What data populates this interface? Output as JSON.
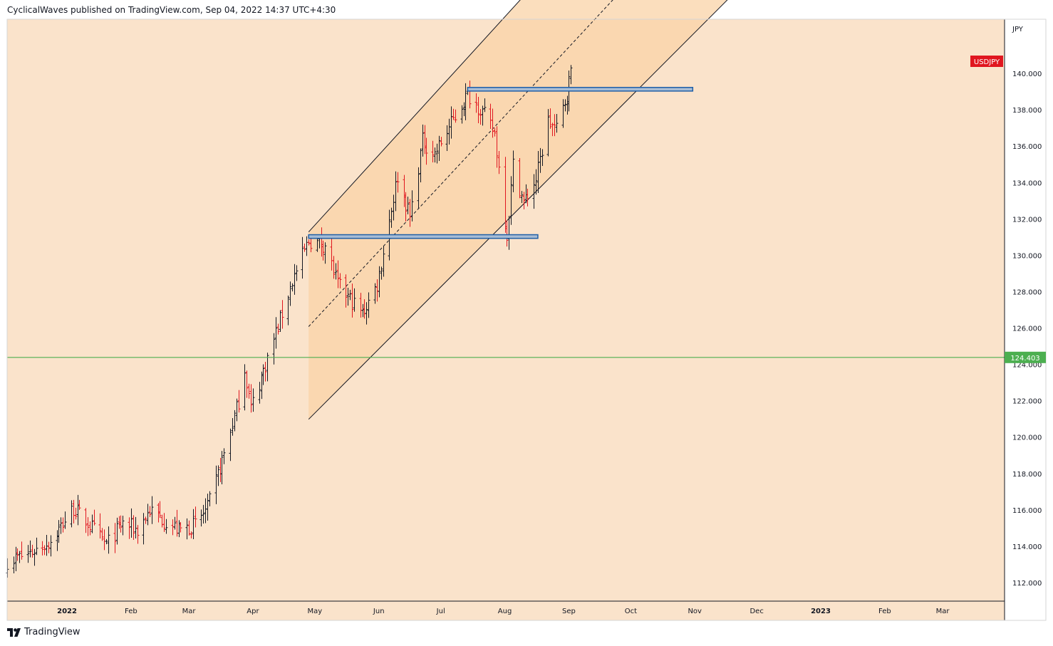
{
  "header": {
    "publisher_line": "CyclicalWaves published on TradingView.com, Sep 04, 2022 14:37 UTC+4:30"
  },
  "footer": {
    "brand": "TradingView"
  },
  "colors": {
    "background": "#fae3cb",
    "channel_fill": "#f9d3a7",
    "up_bar": "#131722",
    "down_bar": "#e0161f",
    "support_line": "#4caf50",
    "symbol_badge": "#e0161f",
    "box_stroke": "#1f5fa8",
    "box_fill": "#a9bdd4"
  },
  "chart_data": {
    "type": "ohlc",
    "symbol": "USDJPY",
    "currency_label": "JPY",
    "interval": "1D",
    "ylim": [
      111,
      143
    ],
    "y_ticks": [
      112,
      114,
      116,
      118,
      120,
      122,
      124,
      126,
      128,
      130,
      132,
      134,
      136,
      138,
      140
    ],
    "y_tick_labels": [
      "112.000",
      "114.000",
      "116.000",
      "118.000",
      "120.000",
      "122.000",
      "124.000",
      "126.000",
      "128.000",
      "130.000",
      "132.000",
      "134.000",
      "136.000",
      "138.000",
      "140.000"
    ],
    "x_range": [
      "2021-12-03",
      "2023-03-31"
    ],
    "x_ticks": [
      {
        "date": "2022-01-01",
        "label": "2022"
      },
      {
        "date": "2022-02-01",
        "label": "Feb"
      },
      {
        "date": "2022-03-01",
        "label": "Mar"
      },
      {
        "date": "2022-04-01",
        "label": "Apr"
      },
      {
        "date": "2022-05-01",
        "label": "May"
      },
      {
        "date": "2022-06-01",
        "label": "Jun"
      },
      {
        "date": "2022-07-01",
        "label": "Jul"
      },
      {
        "date": "2022-08-01",
        "label": "Aug"
      },
      {
        "date": "2022-09-01",
        "label": "Sep"
      },
      {
        "date": "2022-10-01",
        "label": "Oct"
      },
      {
        "date": "2022-11-01",
        "label": "Nov"
      },
      {
        "date": "2022-12-01",
        "label": "Dec"
      },
      {
        "date": "2023-01-01",
        "label": "2023"
      },
      {
        "date": "2023-02-01",
        "label": "Feb"
      },
      {
        "date": "2023-03-01",
        "label": "Mar"
      }
    ],
    "last_price_badge": "USDJPY",
    "horizontal_line": {
      "value": 124.403,
      "label": "124.403"
    },
    "channel": {
      "lower": [
        [
          "2022-04-28",
          121.0
        ],
        [
          "2022-11-25",
          145.0
        ]
      ],
      "upper": [
        [
          "2022-04-28",
          131.3
        ],
        [
          "2022-08-16",
          145.0
        ]
      ],
      "mid": [
        [
          "2022-04-28",
          126.1
        ],
        [
          "2022-09-30",
          145.0
        ]
      ],
      "fill_start": "2022-04-28"
    },
    "boxes": [
      {
        "from": "2022-04-28",
        "to": "2022-08-17",
        "top": 131.15,
        "bottom": 130.95
      },
      {
        "from": "2022-07-14",
        "to": "2022-10-31",
        "top": 139.25,
        "bottom": 139.05
      }
    ],
    "anchors": [
      [
        "2021-12-03",
        113.2
      ],
      [
        "2021-12-13",
        113.6
      ],
      [
        "2021-12-24",
        114.3
      ],
      [
        "2022-01-04",
        116.1
      ],
      [
        "2022-01-11",
        115.3
      ],
      [
        "2022-01-20",
        114.1
      ],
      [
        "2022-01-28",
        115.3
      ],
      [
        "2022-02-04",
        114.9
      ],
      [
        "2022-02-10",
        116.0
      ],
      [
        "2022-02-24",
        114.9
      ],
      [
        "2022-03-04",
        115.2
      ],
      [
        "2022-03-10",
        116.1
      ],
      [
        "2022-03-18",
        119.1
      ],
      [
        "2022-03-25",
        122.0
      ],
      [
        "2022-03-28",
        123.8
      ],
      [
        "2022-03-31",
        121.6
      ],
      [
        "2022-04-11",
        125.4
      ],
      [
        "2022-04-20",
        128.6
      ],
      [
        "2022-04-28",
        130.8
      ],
      [
        "2022-05-06",
        130.6
      ],
      [
        "2022-05-12",
        128.4
      ],
      [
        "2022-05-24",
        126.8
      ],
      [
        "2022-05-31",
        128.4
      ],
      [
        "2022-06-10",
        134.4
      ],
      [
        "2022-06-16",
        132.1
      ],
      [
        "2022-06-22",
        136.3
      ],
      [
        "2022-06-28",
        135.6
      ],
      [
        "2022-07-14",
        138.9
      ],
      [
        "2022-07-20",
        138.1
      ],
      [
        "2022-07-27",
        136.7
      ],
      [
        "2022-08-02",
        131.1
      ],
      [
        "2022-08-05",
        135.0
      ],
      [
        "2022-08-10",
        132.9
      ],
      [
        "2022-08-16",
        134.2
      ],
      [
        "2022-08-22",
        137.4
      ],
      [
        "2022-08-26",
        136.9
      ],
      [
        "2022-08-31",
        138.9
      ],
      [
        "2022-09-02",
        140.2
      ]
    ]
  }
}
